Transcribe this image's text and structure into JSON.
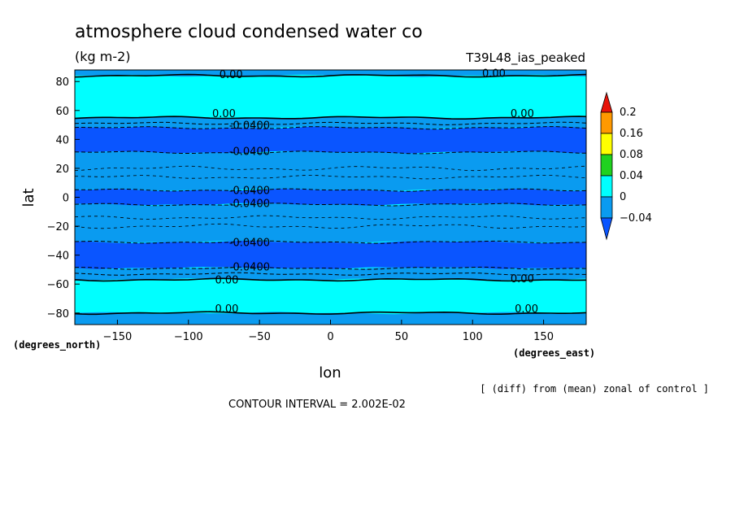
{
  "chart_data": {
    "type": "heatmap",
    "title": "atmosphere cloud condensed water co",
    "units": "(kg m-2)",
    "run_label": "T39L48_ias_peaked",
    "xlabel": "lon",
    "ylabel": "lat",
    "x_units": "(degrees_east)",
    "y_units": "(degrees_north)",
    "xlim": [
      -180,
      180
    ],
    "ylim": [
      -88,
      88
    ],
    "x_ticks": [
      -150,
      -100,
      -50,
      0,
      50,
      100,
      150
    ],
    "y_ticks": [
      -80,
      -60,
      -40,
      -20,
      0,
      20,
      40,
      60,
      80
    ],
    "subtitle": "[ (diff) from (mean) zonal of control ]",
    "contour_interval": "CONTOUR INTERVAL = 2.002E-02",
    "colorbar": {
      "labels": [
        "0.2",
        "0.16",
        "0.08",
        "0.04",
        "0",
        "-0.04"
      ],
      "levels": [
        0.2,
        0.16,
        0.08,
        0.04,
        0,
        -0.04
      ],
      "colors": [
        "#e8140a",
        "#ff9900",
        "#ffff00",
        "#1fd21f",
        "#00ffff",
        "#0a9bf0",
        "#0a55ff"
      ]
    },
    "fill_bands": [
      {
        "lat_min": 55,
        "lat_max": 84,
        "value_range": "0 to 0.02",
        "color": "#00ffff"
      },
      {
        "lat_min": 48,
        "lat_max": 55,
        "value_range": "-0.02 to 0",
        "color": "#0a9bf0"
      },
      {
        "lat_min": 31,
        "lat_max": 48,
        "value_range": "< -0.04",
        "color": "#0a55ff"
      },
      {
        "lat_min": 5,
        "lat_max": 31,
        "value_range": "-0.04 to 0",
        "color": "#0a9bf0"
      },
      {
        "lat_min": -5,
        "lat_max": 5,
        "value_range": "< -0.04",
        "color": "#0a55ff"
      },
      {
        "lat_min": -31,
        "lat_max": -5,
        "value_range": "-0.04 to 0",
        "color": "#0a9bf0"
      },
      {
        "lat_min": -49,
        "lat_max": -31,
        "value_range": "< -0.04",
        "color": "#0a55ff"
      },
      {
        "lat_min": -57,
        "lat_max": -49,
        "value_range": "-0.02 to 0",
        "color": "#0a9bf0"
      },
      {
        "lat_min": -80,
        "lat_max": -57,
        "value_range": "0 to 0.02",
        "color": "#00ffff"
      }
    ],
    "contour_labels": [
      {
        "text": "0.00",
        "lon": -70,
        "lat": 84
      },
      {
        "text": "0.00",
        "lon": 115,
        "lat": 85
      },
      {
        "text": "0.00",
        "lon": -75,
        "lat": 57
      },
      {
        "text": "0.00",
        "lon": 135,
        "lat": 57
      },
      {
        "text": "-0.0400",
        "lon": -57,
        "lat": 49
      },
      {
        "text": "-0.0400",
        "lon": -57,
        "lat": 31
      },
      {
        "text": "-0.0400",
        "lon": -57,
        "lat": 4
      },
      {
        "text": "-0.0400",
        "lon": -57,
        "lat": -5
      },
      {
        "text": "-0.0400",
        "lon": -57,
        "lat": -32
      },
      {
        "text": "-0.0400",
        "lon": -57,
        "lat": -49
      },
      {
        "text": "0.00",
        "lon": -73,
        "lat": -58
      },
      {
        "text": "0.00",
        "lon": 135,
        "lat": -57
      },
      {
        "text": "0.00",
        "lon": -73,
        "lat": -78
      },
      {
        "text": "0.00",
        "lon": 138,
        "lat": -78
      }
    ]
  }
}
